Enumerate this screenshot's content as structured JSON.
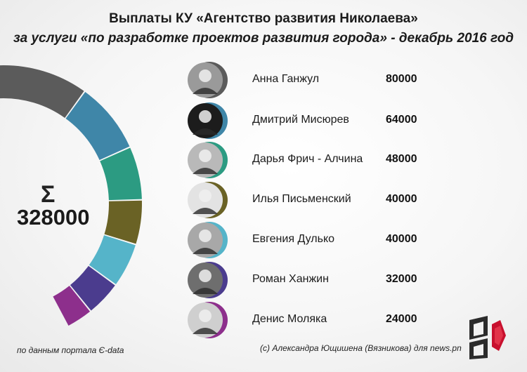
{
  "header": {
    "title_line1": "Выплаты КУ «Агентство развития Николаева»",
    "title_line2": "за услуги «по разработке проектов развития города» - декабрь 2016 год"
  },
  "total": {
    "symbol": "Σ",
    "value": "328000"
  },
  "chart_data": {
    "type": "pie",
    "title": "Выплаты КУ «Агентство развития Николаева» за услуги «по разработке проектов развития города» - декабрь 2016 год",
    "total": 328000,
    "categories": [
      "Анна Ганжул",
      "Дмитрий Мисюрев",
      "Дарья Фрич - Алчина",
      "Илья Письменский",
      "Евгения Дулько",
      "Роман Ханжин",
      "Денис Моляка"
    ],
    "values": [
      80000,
      64000,
      48000,
      40000,
      40000,
      32000,
      24000
    ],
    "colors": [
      "#5b5b5b",
      "#3f86a8",
      "#2c9b82",
      "#6a6225",
      "#55b4c9",
      "#4b3c8e",
      "#8d2f8c"
    ],
    "legend": "right"
  },
  "people": [
    {
      "name": "Анна Ганжул",
      "amount": "80000",
      "color": "#5b5b5b",
      "photo_bg": "#9a9a9a"
    },
    {
      "name": "Дмитрий Мисюрев",
      "amount": "64000",
      "color": "#3f86a8",
      "photo_bg": "#1c1c1c"
    },
    {
      "name": "Дарья Фрич - Алчина",
      "amount": "48000",
      "color": "#2c9b82",
      "photo_bg": "#b9b9b9"
    },
    {
      "name": "Илья Письменский",
      "amount": "40000",
      "color": "#6a6225",
      "photo_bg": "#e3e3e3"
    },
    {
      "name": "Евгения Дулько",
      "amount": "40000",
      "color": "#55b4c9",
      "photo_bg": "#a8a8a8"
    },
    {
      "name": "Роман Ханжин",
      "amount": "32000",
      "color": "#4b3c8e",
      "photo_bg": "#6e6e6e"
    },
    {
      "name": "Денис Моляка",
      "amount": "24000",
      "color": "#8d2f8c",
      "photo_bg": "#cfcfcf"
    }
  ],
  "footer": {
    "source": "по данным портала Є-data",
    "credit": "(с) Александра Ющишена (Вязникова) для news.pn"
  },
  "logo": {
    "icon": "news-pn-logo-icon"
  }
}
